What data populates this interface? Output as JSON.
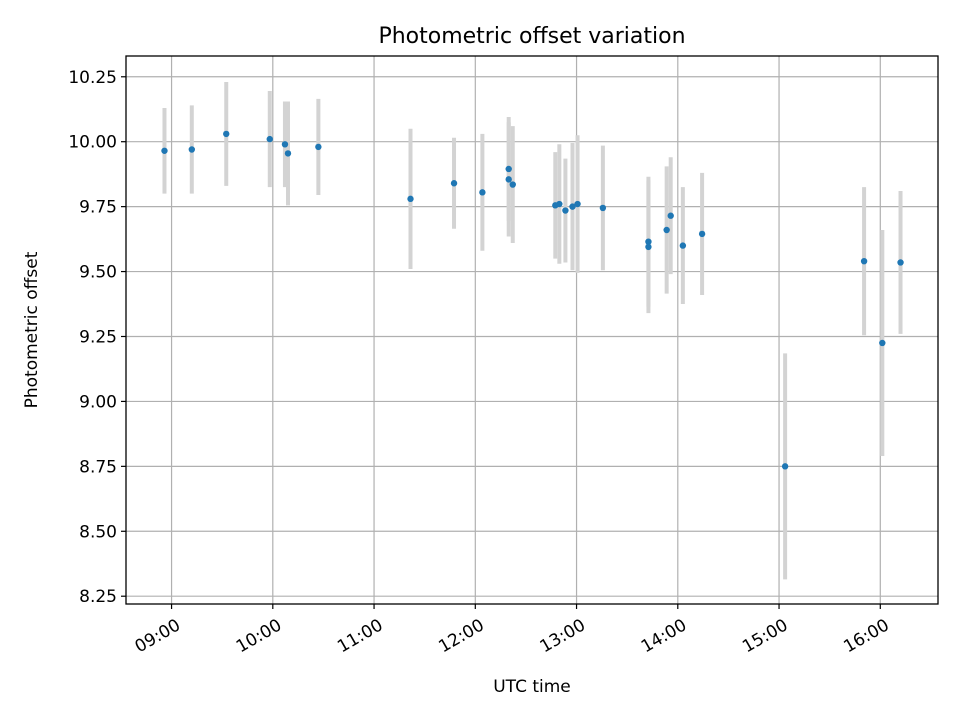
{
  "chart_data": {
    "type": "scatter",
    "title": "Photometric offset variation",
    "xlabel": "UTC time",
    "ylabel": "Photometric offset",
    "xlim": [
      8.55,
      16.57
    ],
    "ylim": [
      8.22,
      10.33
    ],
    "x_ticks": [
      {
        "value": 9,
        "label": "09:00"
      },
      {
        "value": 10,
        "label": "10:00"
      },
      {
        "value": 11,
        "label": "11:00"
      },
      {
        "value": 12,
        "label": "12:00"
      },
      {
        "value": 13,
        "label": "13:00"
      },
      {
        "value": 14,
        "label": "14:00"
      },
      {
        "value": 15,
        "label": "15:00"
      },
      {
        "value": 16,
        "label": "16:00"
      }
    ],
    "y_ticks": [
      {
        "value": 8.25,
        "label": "8.25"
      },
      {
        "value": 8.5,
        "label": "8.50"
      },
      {
        "value": 8.75,
        "label": "8.75"
      },
      {
        "value": 9.0,
        "label": "9.00"
      },
      {
        "value": 9.25,
        "label": "9.25"
      },
      {
        "value": 9.5,
        "label": "9.50"
      },
      {
        "value": 9.75,
        "label": "9.75"
      },
      {
        "value": 10.0,
        "label": "10.00"
      },
      {
        "value": 10.25,
        "label": "10.25"
      }
    ],
    "grid": true,
    "series": [
      {
        "name": "offset",
        "point_color": "#1f77b4",
        "errorbar_color": "#d3d3d3",
        "points": [
          {
            "x": 8.93,
            "y": 9.965,
            "err": 0.165
          },
          {
            "x": 9.2,
            "y": 9.97,
            "err": 0.17
          },
          {
            "x": 9.54,
            "y": 10.03,
            "err": 0.2
          },
          {
            "x": 9.97,
            "y": 10.01,
            "err": 0.185
          },
          {
            "x": 10.12,
            "y": 9.99,
            "err": 0.165
          },
          {
            "x": 10.15,
            "y": 9.955,
            "err": 0.2
          },
          {
            "x": 10.45,
            "y": 9.98,
            "err": 0.185
          },
          {
            "x": 11.36,
            "y": 9.78,
            "err": 0.27
          },
          {
            "x": 11.79,
            "y": 9.84,
            "err": 0.175
          },
          {
            "x": 12.07,
            "y": 9.805,
            "err": 0.225
          },
          {
            "x": 12.33,
            "y": 9.895,
            "err": 0.2
          },
          {
            "x": 12.33,
            "y": 9.855,
            "err": 0.22
          },
          {
            "x": 12.37,
            "y": 9.835,
            "err": 0.225
          },
          {
            "x": 12.79,
            "y": 9.755,
            "err": 0.205
          },
          {
            "x": 12.83,
            "y": 9.76,
            "err": 0.23
          },
          {
            "x": 12.89,
            "y": 9.735,
            "err": 0.2
          },
          {
            "x": 12.96,
            "y": 9.75,
            "err": 0.245
          },
          {
            "x": 13.01,
            "y": 9.76,
            "err": 0.265
          },
          {
            "x": 13.26,
            "y": 9.745,
            "err": 0.24
          },
          {
            "x": 13.71,
            "y": 9.615,
            "err": 0.25
          },
          {
            "x": 13.71,
            "y": 9.595,
            "err": 0.255
          },
          {
            "x": 13.89,
            "y": 9.66,
            "err": 0.245
          },
          {
            "x": 13.93,
            "y": 9.715,
            "err": 0.225
          },
          {
            "x": 14.05,
            "y": 9.6,
            "err": 0.225
          },
          {
            "x": 14.24,
            "y": 9.645,
            "err": 0.235
          },
          {
            "x": 15.06,
            "y": 8.75,
            "err": 0.435
          },
          {
            "x": 15.84,
            "y": 9.54,
            "err": 0.285
          },
          {
            "x": 16.02,
            "y": 9.225,
            "err": 0.435
          },
          {
            "x": 16.2,
            "y": 9.535,
            "err": 0.275
          }
        ]
      }
    ]
  }
}
